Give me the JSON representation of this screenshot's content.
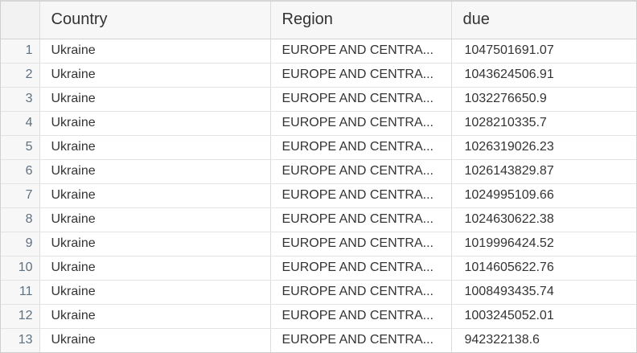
{
  "grid": {
    "columns": [
      {
        "key": "country",
        "label": "Country"
      },
      {
        "key": "region",
        "label": "Region"
      },
      {
        "key": "due",
        "label": "due"
      }
    ],
    "rows": [
      {
        "index": "1",
        "country": "Ukraine",
        "region": "EUROPE AND CENTRA...",
        "due": "1047501691.07"
      },
      {
        "index": "2",
        "country": "Ukraine",
        "region": "EUROPE AND CENTRA...",
        "due": "1043624506.91"
      },
      {
        "index": "3",
        "country": "Ukraine",
        "region": "EUROPE AND CENTRA...",
        "due": "1032276650.9"
      },
      {
        "index": "4",
        "country": "Ukraine",
        "region": "EUROPE AND CENTRA...",
        "due": "1028210335.7"
      },
      {
        "index": "5",
        "country": "Ukraine",
        "region": "EUROPE AND CENTRA...",
        "due": "1026319026.23"
      },
      {
        "index": "6",
        "country": "Ukraine",
        "region": "EUROPE AND CENTRA...",
        "due": "1026143829.87"
      },
      {
        "index": "7",
        "country": "Ukraine",
        "region": "EUROPE AND CENTRA...",
        "due": "1024995109.66"
      },
      {
        "index": "8",
        "country": "Ukraine",
        "region": "EUROPE AND CENTRA...",
        "due": "1024630622.38"
      },
      {
        "index": "9",
        "country": "Ukraine",
        "region": "EUROPE AND CENTRA...",
        "due": "1019996424.52"
      },
      {
        "index": "10",
        "country": "Ukraine",
        "region": "EUROPE AND CENTRA...",
        "due": "1014605622.76"
      },
      {
        "index": "11",
        "country": "Ukraine",
        "region": "EUROPE AND CENTRA...",
        "due": "1008493435.74"
      },
      {
        "index": "12",
        "country": "Ukraine",
        "region": "EUROPE AND CENTRA...",
        "due": "1003245052.01"
      },
      {
        "index": "13",
        "country": "Ukraine",
        "region": "EUROPE AND CENTRA...",
        "due": "942322138.6"
      }
    ]
  }
}
